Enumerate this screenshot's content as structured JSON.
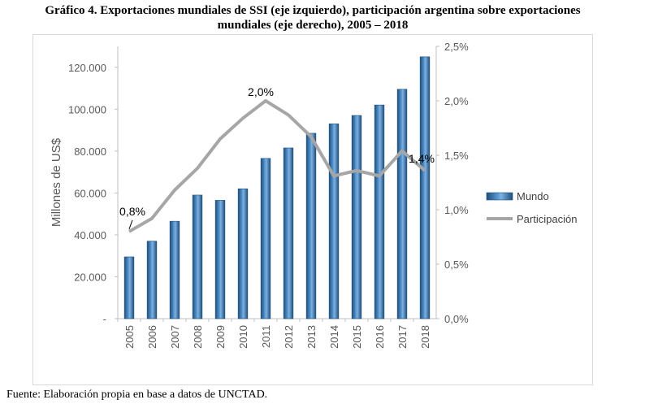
{
  "title_line1": "Gráfico 4. Exportaciones mundiales de SSI (eje izquierdo), participación argentina sobre exportaciones",
  "title_line2": "mundiales (eje derecho), 2005 – 2018",
  "source": "Fuente: Elaboración propia en base a datos de UNCTAD.",
  "chart_data": {
    "type": "bar",
    "categories": [
      "2005",
      "2006",
      "2007",
      "2008",
      "2009",
      "2010",
      "2011",
      "2012",
      "2013",
      "2014",
      "2015",
      "2016",
      "2017",
      "2018"
    ],
    "series": [
      {
        "name": "Mundo",
        "type": "bar",
        "axis": "left",
        "values": [
          29500,
          37000,
          46500,
          59000,
          56500,
          62000,
          76500,
          81500,
          88500,
          93000,
          97000,
          102000,
          109500,
          125000
        ],
        "color": "#2e75b6"
      },
      {
        "name": "Participación",
        "type": "line",
        "axis": "right",
        "values": [
          0.8,
          0.92,
          1.18,
          1.38,
          1.65,
          1.84,
          2.0,
          1.87,
          1.67,
          1.31,
          1.36,
          1.31,
          1.54,
          1.36
        ],
        "color": "#a6a6a6"
      }
    ],
    "ylabel": "Millones de US$",
    "ylim_left": [
      0,
      130000
    ],
    "ylim_right": [
      0,
      2.5
    ],
    "yticks_left": [
      "-",
      "20.000",
      "40.000",
      "60.000",
      "80.000",
      "100.000",
      "120.000"
    ],
    "yticks_right": [
      "0,0%",
      "0,5%",
      "1,0%",
      "1,5%",
      "2,0%",
      "2,5%"
    ],
    "annotations": [
      {
        "index": 0,
        "label": "0,8%"
      },
      {
        "index": 6,
        "label": "2,0%"
      },
      {
        "index": 13,
        "label": "1,4%"
      }
    ],
    "legend_position": "right",
    "grid": false
  }
}
